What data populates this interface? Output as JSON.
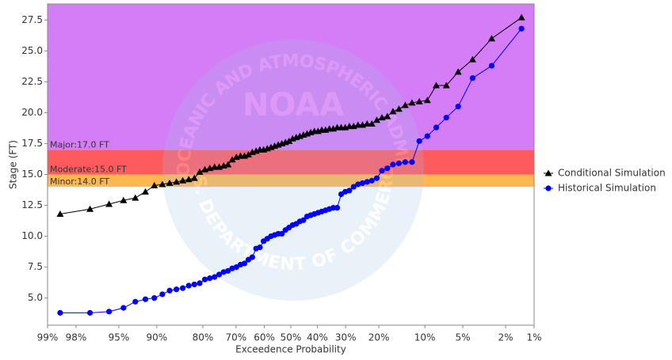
{
  "chart_data": {
    "type": "probability-line",
    "xlabel": "Exceedence Probability",
    "ylabel": "Stage (FT)",
    "xscale": "normal-probability",
    "xlim": [
      99,
      1
    ],
    "xticks": [
      {
        "value": 99,
        "label": "99%"
      },
      {
        "value": 98,
        "label": "98%"
      },
      {
        "value": 95,
        "label": "95%"
      },
      {
        "value": 90,
        "label": "90%"
      },
      {
        "value": 80,
        "label": "80%"
      },
      {
        "value": 70,
        "label": "70%"
      },
      {
        "value": 60,
        "label": "60%"
      },
      {
        "value": 50,
        "label": "50%"
      },
      {
        "value": 40,
        "label": "40%"
      },
      {
        "value": 30,
        "label": "30%"
      },
      {
        "value": 20,
        "label": "20%"
      },
      {
        "value": 10,
        "label": "10%"
      },
      {
        "value": 5,
        "label": "5%"
      },
      {
        "value": 2,
        "label": "2%"
      },
      {
        "value": 1,
        "label": "1%"
      }
    ],
    "ylim": [
      2.8,
      28.8
    ],
    "yticks": [
      {
        "value": 5,
        "label": "5.0"
      },
      7.5,
      {
        "value": 10,
        "label": "10.0"
      },
      12.5,
      {
        "value": 15,
        "label": "15.0"
      },
      17.5,
      {
        "value": 20,
        "label": "20.0"
      },
      22.5,
      {
        "value": 25,
        "label": "25.0"
      },
      27.5
    ],
    "flood_categories": [
      {
        "label": "Minor:14.0 FT",
        "value": 14.0,
        "color": "#ffb74f"
      },
      {
        "label": "Moderate:15.0 FT",
        "value": 15.0,
        "color": "#ff5a5e"
      },
      {
        "label": "Major:17.0 FT",
        "value": 17.0,
        "color": "#d57df6"
      }
    ],
    "watermark": {
      "top": "NATIONAL OCEANIC AND ATMOSPHERIC ADMINISTRATION",
      "center": "NOAA",
      "bottom": "U.S. DEPARTMENT OF COMMERCE"
    },
    "legend": "right",
    "x": [
      98.63,
      97.26,
      95.89,
      94.52,
      93.15,
      91.78,
      90.41,
      89.04,
      87.67,
      86.3,
      84.93,
      83.56,
      82.19,
      80.82,
      79.45,
      78.08,
      76.71,
      75.34,
      73.97,
      72.6,
      71.23,
      69.86,
      68.49,
      67.12,
      65.75,
      64.38,
      63.01,
      61.64,
      60.27,
      58.9,
      57.53,
      56.16,
      54.79,
      53.42,
      52.05,
      50.68,
      49.32,
      47.95,
      46.58,
      45.21,
      43.84,
      42.47,
      41.1,
      39.73,
      38.36,
      36.99,
      35.62,
      34.25,
      32.88,
      31.51,
      30.14,
      28.77,
      27.4,
      26.03,
      24.66,
      23.29,
      21.92,
      20.55,
      19.18,
      17.81,
      16.44,
      15.07,
      13.7,
      12.33,
      10.96,
      9.59,
      8.22,
      6.85,
      5.48,
      4.11,
      2.74,
      1.37
    ],
    "series": [
      {
        "name": "Conditional Simulation",
        "color": "#000000",
        "marker": "triangle",
        "values": [
          11.8,
          12.2,
          12.6,
          12.9,
          13.1,
          13.6,
          14.1,
          14.2,
          14.3,
          14.4,
          14.5,
          14.6,
          14.7,
          15.2,
          15.4,
          15.5,
          15.6,
          15.6,
          15.7,
          15.8,
          16.2,
          16.4,
          16.5,
          16.5,
          16.6,
          16.8,
          16.9,
          17.0,
          17.0,
          17.1,
          17.2,
          17.3,
          17.4,
          17.5,
          17.6,
          17.7,
          17.9,
          18.0,
          18.1,
          18.2,
          18.3,
          18.4,
          18.5,
          18.5,
          18.6,
          18.6,
          18.7,
          18.7,
          18.8,
          18.8,
          18.8,
          18.9,
          18.9,
          19.0,
          19.0,
          19.1,
          19.1,
          19.4,
          19.6,
          19.7,
          20.1,
          20.3,
          20.6,
          20.8,
          20.9,
          21.0,
          22.2,
          22.2,
          23.3,
          24.3,
          26.0,
          27.7
        ]
      },
      {
        "name": "Historical Simulation",
        "color": "#0000ff",
        "marker": "circle",
        "values": [
          3.8,
          3.8,
          3.9,
          4.2,
          4.7,
          4.9,
          5.0,
          5.3,
          5.6,
          5.7,
          5.8,
          6.0,
          6.1,
          6.2,
          6.5,
          6.6,
          6.7,
          6.9,
          7.1,
          7.2,
          7.4,
          7.5,
          7.7,
          7.8,
          8.1,
          8.3,
          9.0,
          9.1,
          9.6,
          9.8,
          10.0,
          10.1,
          10.2,
          10.2,
          10.5,
          10.7,
          10.9,
          11.0,
          11.2,
          11.3,
          11.6,
          11.7,
          11.8,
          11.9,
          12.0,
          12.1,
          12.2,
          12.3,
          12.3,
          13.4,
          13.6,
          13.7,
          14.0,
          14.2,
          14.3,
          14.4,
          14.5,
          14.7,
          15.3,
          15.5,
          15.8,
          15.9,
          16.0,
          16.0,
          17.7,
          18.1,
          18.8,
          19.6,
          20.5,
          22.8,
          23.8,
          26.8
        ]
      }
    ]
  }
}
